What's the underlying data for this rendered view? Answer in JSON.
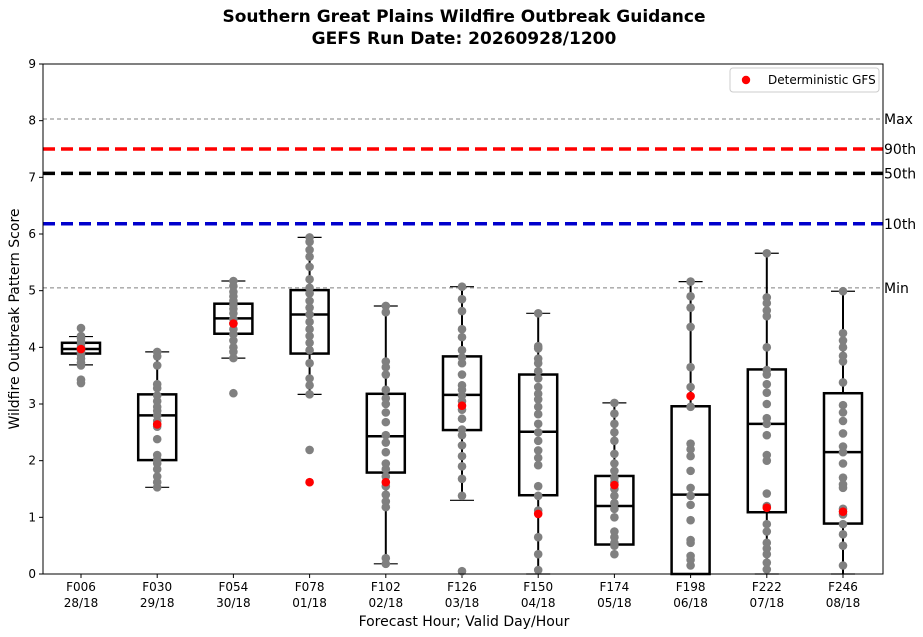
{
  "title_line1": "Southern Great Plains Wildfire Outbreak Guidance",
  "title_line2": "GEFS Run Date: 20260928/1200",
  "colors": {
    "box": "#000000",
    "members": "#808080",
    "deterministic": "#ff0000",
    "p90": "#ff0000",
    "p50": "#000000",
    "p10": "#0000cc",
    "maxmin": "#808080"
  },
  "chart_data": {
    "type": "box",
    "title": "Southern Great Plains Wildfire Outbreak Guidance\nGEFS Run Date: 20260928/1200",
    "xlabel": "Forecast Hour; Valid Day/Hour",
    "ylabel": "Wildfire Outbreak Pattern Score",
    "ylim": [
      0,
      9
    ],
    "yticks": [
      "0",
      "1",
      "2",
      "3",
      "4",
      "5",
      "6",
      "7",
      "8",
      "9"
    ],
    "grid": false,
    "legend": {
      "position": "top-right",
      "entries": [
        "Deterministic GFS"
      ]
    },
    "reference_lines": [
      {
        "label": "Max",
        "value": 8.03,
        "style": "thin-dashed"
      },
      {
        "label": "90th",
        "value": 7.5,
        "style": "thick-dashed"
      },
      {
        "label": "50th",
        "value": 7.07,
        "style": "thick-dashed"
      },
      {
        "label": "10th",
        "value": 6.18,
        "style": "thick-dashed"
      },
      {
        "label": "Min",
        "value": 5.05,
        "style": "thin-dashed"
      }
    ],
    "categories": [
      {
        "hour": "F006",
        "valid": "28/18",
        "whisker_low": 3.69,
        "q1": 3.89,
        "median": 3.97,
        "q3": 4.08,
        "whisker_high": 4.19,
        "deterministic": 3.97,
        "members": [
          4.34,
          4.2,
          4.16,
          4.1,
          4.05,
          4.0,
          3.98,
          3.95,
          3.92,
          3.9,
          3.87,
          3.8,
          3.73,
          3.68,
          3.43,
          3.37
        ]
      },
      {
        "hour": "F030",
        "valid": "29/18",
        "whisker_low": 1.53,
        "q1": 2.01,
        "median": 2.8,
        "q3": 3.17,
        "whisker_high": 3.92,
        "deterministic": 2.64,
        "members": [
          3.92,
          3.84,
          3.68,
          3.35,
          3.28,
          3.15,
          3.05,
          2.95,
          2.88,
          2.8,
          2.7,
          2.6,
          2.38,
          2.1,
          2.02,
          1.95,
          1.85,
          1.72,
          1.62,
          1.53
        ]
      },
      {
        "hour": "F054",
        "valid": "30/18",
        "whisker_low": 3.81,
        "q1": 4.24,
        "median": 4.51,
        "q3": 4.77,
        "whisker_high": 5.17,
        "deterministic": 4.42,
        "members": [
          5.17,
          5.08,
          4.98,
          4.9,
          4.82,
          4.75,
          4.68,
          4.6,
          4.5,
          4.42,
          4.32,
          4.23,
          4.12,
          4.0,
          3.92,
          3.81,
          3.19
        ]
      },
      {
        "hour": "F078",
        "valid": "01/18",
        "whisker_low": 3.17,
        "q1": 3.89,
        "median": 4.58,
        "q3": 5.01,
        "whisker_high": 5.94,
        "deterministic": 1.62,
        "members": [
          5.94,
          5.86,
          5.72,
          5.6,
          5.42,
          5.2,
          5.05,
          4.95,
          4.82,
          4.7,
          4.58,
          4.45,
          4.32,
          4.2,
          4.08,
          3.95,
          3.72,
          3.45,
          3.33,
          3.17,
          2.19
        ]
      },
      {
        "hour": "F102",
        "valid": "02/18",
        "whisker_low": 0.18,
        "q1": 1.79,
        "median": 2.43,
        "q3": 3.18,
        "whisker_high": 4.73,
        "deterministic": 1.62,
        "members": [
          4.73,
          4.62,
          3.75,
          3.65,
          3.52,
          3.25,
          3.1,
          3.0,
          2.85,
          2.68,
          2.45,
          2.32,
          2.15,
          1.95,
          1.85,
          1.72,
          1.55,
          1.4,
          1.28,
          1.18,
          0.28,
          0.18
        ]
      },
      {
        "hour": "F126",
        "valid": "03/18",
        "whisker_low": 1.3,
        "q1": 2.54,
        "median": 3.16,
        "q3": 3.84,
        "whisker_high": 5.07,
        "deterministic": 2.97,
        "members": [
          5.07,
          4.85,
          4.64,
          4.32,
          4.18,
          3.95,
          3.82,
          3.72,
          3.52,
          3.33,
          3.25,
          3.15,
          3.05,
          2.9,
          2.74,
          2.55,
          2.45,
          2.27,
          2.08,
          1.9,
          1.68,
          1.38,
          0.05
        ]
      },
      {
        "hour": "F150",
        "valid": "04/18",
        "whisker_low": 0.0,
        "q1": 1.39,
        "median": 2.51,
        "q3": 3.52,
        "whisker_high": 4.6,
        "deterministic": 1.06,
        "members": [
          4.6,
          4.02,
          3.98,
          3.8,
          3.72,
          3.58,
          3.45,
          3.3,
          3.18,
          3.08,
          2.95,
          2.82,
          2.65,
          2.5,
          2.35,
          2.18,
          2.05,
          1.92,
          1.55,
          1.38,
          1.12,
          0.65,
          0.35,
          0.07
        ]
      },
      {
        "hour": "F174",
        "valid": "05/18",
        "whisker_low": 0.52,
        "q1": 0.52,
        "median": 1.2,
        "q3": 1.73,
        "whisker_high": 3.02,
        "deterministic": 1.57,
        "members": [
          3.02,
          2.83,
          2.65,
          2.5,
          2.35,
          2.12,
          1.95,
          1.82,
          1.7,
          1.62,
          1.5,
          1.38,
          1.25,
          1.15,
          1.0,
          0.75,
          0.65,
          0.55,
          0.5,
          0.35
        ]
      },
      {
        "hour": "F198",
        "valid": "06/18",
        "whisker_low": 0.0,
        "q1": 0.0,
        "median": 1.4,
        "q3": 2.96,
        "whisker_high": 5.16,
        "deterministic": 3.14,
        "members": [
          5.16,
          4.9,
          4.7,
          4.36,
          3.65,
          3.3,
          2.95,
          2.3,
          2.2,
          2.08,
          1.82,
          1.52,
          1.38,
          1.22,
          0.95,
          0.6,
          0.55,
          0.32,
          0.25,
          0.15
        ]
      },
      {
        "hour": "F222",
        "valid": "07/18",
        "whisker_low": 0.0,
        "q1": 1.09,
        "median": 2.65,
        "q3": 3.61,
        "whisker_high": 5.66,
        "deterministic": 1.17,
        "members": [
          5.66,
          4.88,
          4.78,
          4.65,
          4.55,
          4.0,
          3.6,
          3.52,
          3.35,
          3.2,
          3.0,
          2.75,
          2.65,
          2.45,
          2.1,
          2.0,
          1.42,
          1.2,
          0.88,
          0.75,
          0.55,
          0.45,
          0.35,
          0.2,
          0.08
        ]
      },
      {
        "hour": "F246",
        "valid": "08/18",
        "whisker_low": 0.0,
        "q1": 0.89,
        "median": 2.15,
        "q3": 3.19,
        "whisker_high": 4.99,
        "deterministic": 1.1,
        "members": [
          4.99,
          4.25,
          4.12,
          4.0,
          3.85,
          3.75,
          3.38,
          2.98,
          2.85,
          2.7,
          2.48,
          2.25,
          2.15,
          1.95,
          1.7,
          1.58,
          1.52,
          1.15,
          1.05,
          0.88,
          0.7,
          0.5,
          0.15
        ]
      }
    ]
  }
}
